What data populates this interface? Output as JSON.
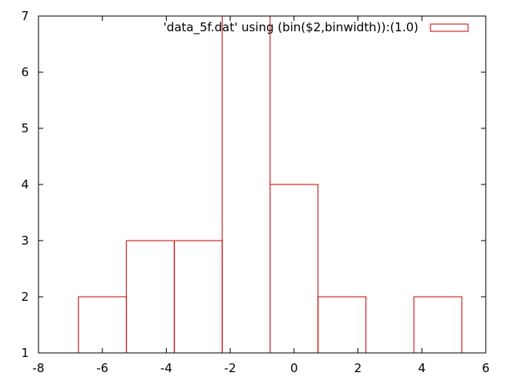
{
  "chart_data": {
    "type": "bar",
    "title": "",
    "xlabel": "",
    "ylabel": "",
    "xlim": [
      -8,
      6
    ],
    "ylim": [
      1,
      7
    ],
    "x_ticks": [
      -8,
      -6,
      -4,
      -2,
      0,
      2,
      4,
      6
    ],
    "y_ticks": [
      1,
      2,
      3,
      4,
      5,
      6,
      7
    ],
    "x_tick_labels": [
      "-8",
      "-6",
      "-4",
      "-2",
      "0",
      "2",
      "4",
      "6"
    ],
    "y_tick_labels": [
      "1",
      "2",
      "3",
      "4",
      "5",
      "6",
      "7"
    ],
    "grid": false,
    "legend_position": "top-right",
    "series": [
      {
        "name": "'data_5f.dat' using (bin($2,binwidth)):(1.0)",
        "color": "#cc0000",
        "bins": [
          {
            "x0": -6.75,
            "x1": -5.25,
            "value": 2
          },
          {
            "x0": -5.25,
            "x1": -3.75,
            "value": 3
          },
          {
            "x0": -3.75,
            "x1": -2.25,
            "value": 3
          },
          {
            "x0": -2.25,
            "x1": -0.75,
            "value": 7
          },
          {
            "x0": -0.75,
            "x1": 0.75,
            "value": 4
          },
          {
            "x0": 0.75,
            "x1": 2.25,
            "value": 2
          },
          {
            "x0": 3.75,
            "x1": 5.25,
            "value": 2
          }
        ]
      }
    ]
  }
}
